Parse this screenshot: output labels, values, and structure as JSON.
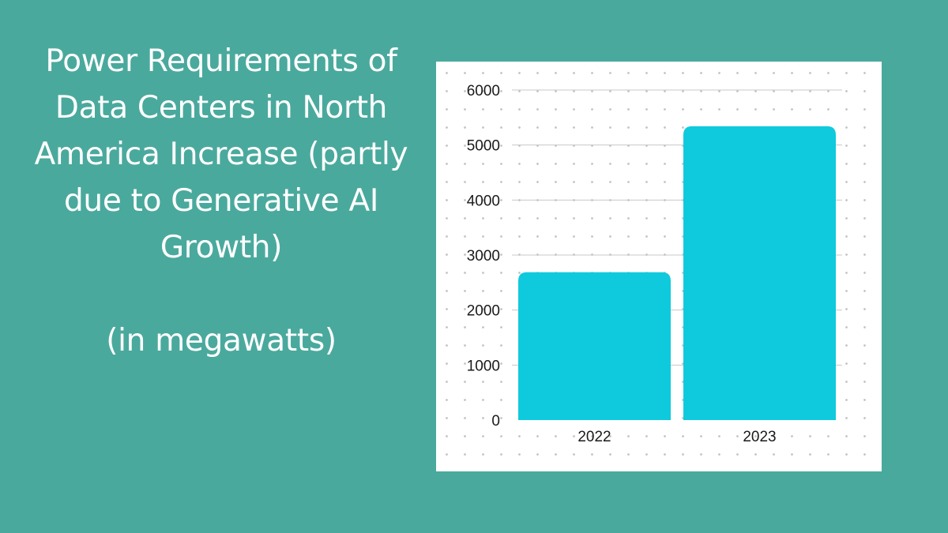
{
  "title": "Power Requirements of Data Centers in North America Increase (partly due to Generative AI Growth)",
  "unit_note": "(in megawatts)",
  "colors": {
    "background": "#4aa99d",
    "bar": "#0fcadd",
    "panel": "#ffffff",
    "gridline": "#c8c8c8"
  },
  "chart_data": {
    "type": "bar",
    "categories": [
      "2022",
      "2023"
    ],
    "values": [
      2688,
      5341
    ],
    "title": "",
    "xlabel": "",
    "ylabel": "",
    "ylim": [
      0,
      6000
    ],
    "yticks": [
      "0",
      "1000",
      "2000",
      "3000",
      "4000",
      "5000",
      "6000"
    ],
    "grid": true,
    "legend": "none"
  }
}
